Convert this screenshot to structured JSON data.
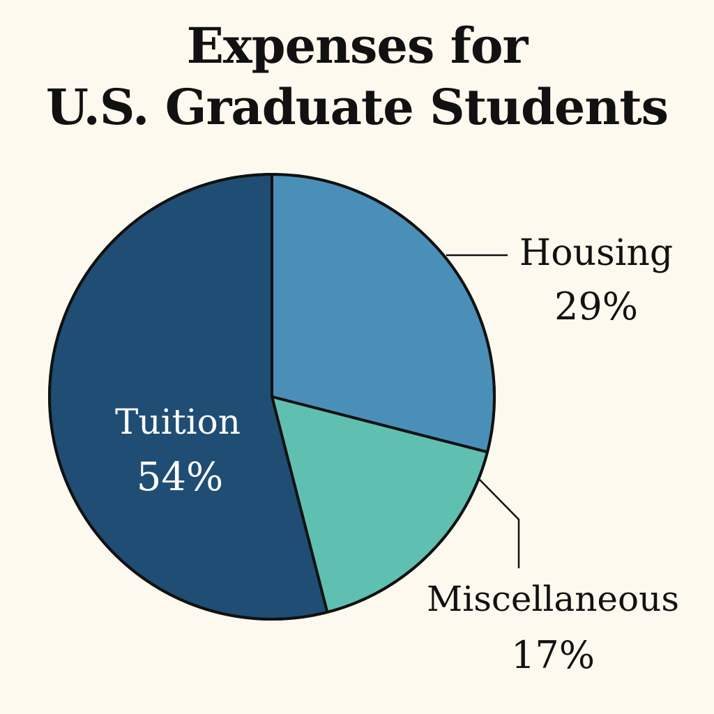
{
  "chart_data": {
    "type": "pie",
    "title_lines": [
      "Expenses for",
      "U.S. Graduate Students"
    ],
    "slices": [
      {
        "label": "Housing",
        "value": 29,
        "value_label": "29%",
        "color": "#4a8fb8"
      },
      {
        "label": "Miscellaneous",
        "value": 17,
        "value_label": "17%",
        "color": "#5fc0b1"
      },
      {
        "label": "Tuition",
        "value": 54,
        "value_label": "54%",
        "color": "#1f4d74"
      }
    ],
    "start_direction": "top",
    "direction": "clockwise",
    "outline_color": "#111111",
    "background_color": "#fdf9ee"
  }
}
